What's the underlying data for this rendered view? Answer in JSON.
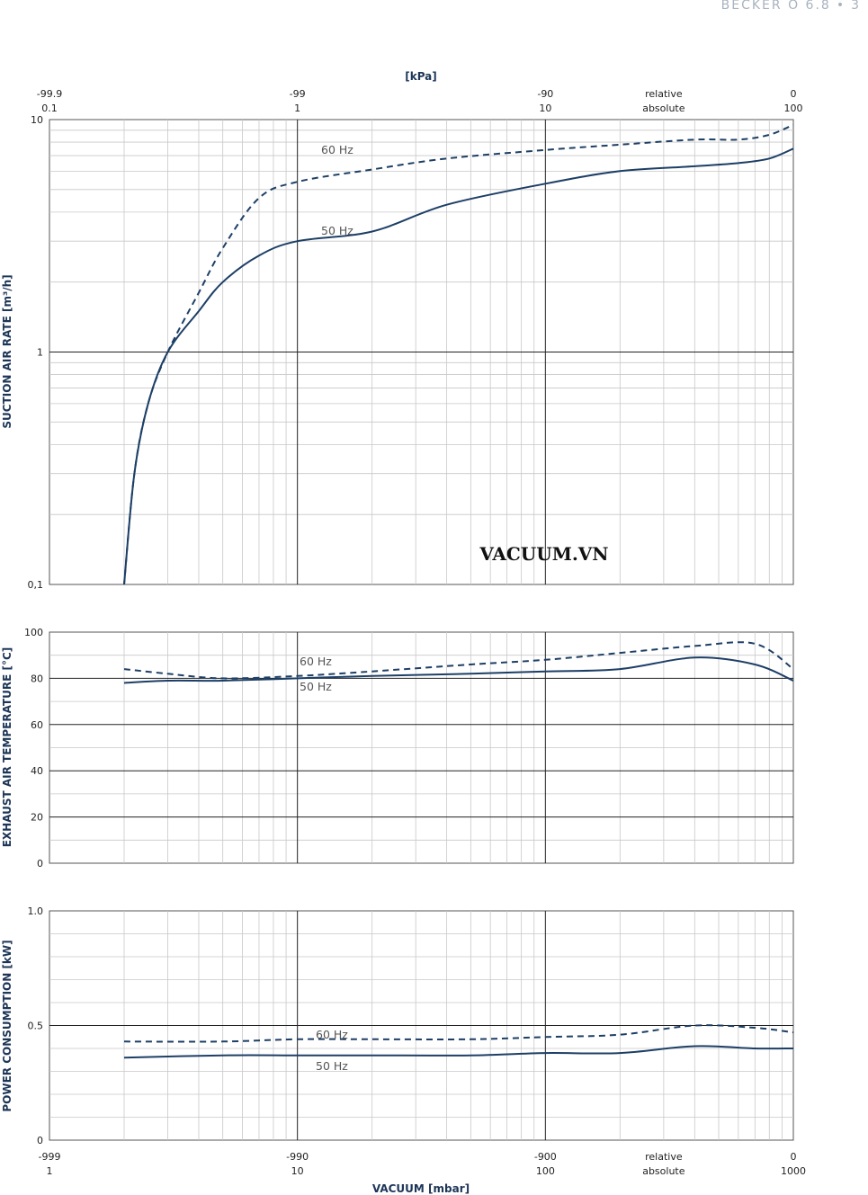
{
  "header": {
    "brand": "BECKER O 6.8",
    "page": "3"
  },
  "watermark": "VACUUM.VN",
  "colors": {
    "curve": "#1d3f66",
    "grid_major": "#222222",
    "grid_minor": "#c8c8c8",
    "axis_title": "#1d3557"
  },
  "chart_data": [
    {
      "type": "line",
      "id": "suction",
      "ylabel": "SUCTION AIR RATE  [m³/h]",
      "y_scale": "log",
      "ylim": [
        0.1,
        10
      ],
      "y_ticks": [
        "0,1",
        "1",
        "10"
      ],
      "x_scale": "log",
      "xlabel": "[kPa]",
      "x_ticks": [
        {
          "relative": "-99.9",
          "absolute": "0.1"
        },
        {
          "relative": "-99",
          "absolute": "1"
        },
        {
          "relative": "-90",
          "absolute": "10"
        },
        {
          "relative": "relative",
          "absolute": "absolute"
        },
        {
          "relative": "0",
          "absolute": "100"
        }
      ],
      "series": [
        {
          "name": "60 Hz",
          "style": "dashed",
          "x": [
            2,
            2.2,
            2.5,
            3,
            4,
            5,
            7,
            10,
            20,
            40,
            100,
            200,
            400,
            600,
            800,
            1000
          ],
          "y": [
            0.1,
            0.3,
            0.6,
            1.0,
            1.8,
            2.8,
            4.6,
            5.4,
            6.1,
            6.8,
            7.4,
            7.8,
            8.2,
            8.2,
            8.6,
            9.5
          ]
        },
        {
          "name": "50 Hz",
          "style": "solid",
          "x": [
            2,
            2.2,
            2.5,
            3,
            4,
            5,
            7,
            10,
            20,
            40,
            100,
            200,
            400,
            600,
            800,
            1000
          ],
          "y": [
            0.1,
            0.3,
            0.6,
            1.0,
            1.5,
            2.0,
            2.6,
            3.0,
            3.3,
            4.3,
            5.3,
            6.0,
            6.3,
            6.5,
            6.8,
            7.5
          ]
        }
      ]
    },
    {
      "type": "line",
      "id": "temperature",
      "ylabel": "EXHAUST AIR TEMPERATURE  [°C]",
      "y_scale": "linear",
      "ylim": [
        0,
        100
      ],
      "y_ticks": [
        "0",
        "20",
        "40",
        "60",
        "80",
        "100"
      ],
      "series": [
        {
          "name": "60 Hz",
          "style": "dashed",
          "x": [
            2,
            3,
            5,
            10,
            20,
            50,
            100,
            200,
            400,
            700,
            1000
          ],
          "y": [
            84,
            82,
            80,
            81,
            83,
            86,
            88,
            91,
            94,
            95,
            84
          ]
        },
        {
          "name": "50 Hz",
          "style": "solid",
          "x": [
            2,
            3,
            5,
            10,
            20,
            50,
            100,
            200,
            400,
            700,
            1000
          ],
          "y": [
            78,
            79,
            79,
            80,
            81,
            82,
            83,
            84,
            89,
            86,
            79
          ]
        }
      ]
    },
    {
      "type": "line",
      "id": "power",
      "ylabel": "POWER CONSUMPTION  [kW]",
      "y_scale": "linear",
      "ylim": [
        0,
        1.0
      ],
      "y_ticks": [
        "0",
        "0.5",
        "1.0"
      ],
      "x_scale": "log",
      "xlabel": "VACUUM  [mbar]",
      "x_ticks": [
        {
          "relative": "-999",
          "absolute": "1"
        },
        {
          "relative": "-990",
          "absolute": "10"
        },
        {
          "relative": "-900",
          "absolute": "100"
        },
        {
          "relative": "relative",
          "absolute": "absolute"
        },
        {
          "relative": "0",
          "absolute": "1000"
        }
      ],
      "series": [
        {
          "name": "60 Hz",
          "style": "dashed",
          "x": [
            2,
            5,
            10,
            20,
            50,
            100,
            200,
            400,
            700,
            1000
          ],
          "y": [
            0.43,
            0.43,
            0.44,
            0.44,
            0.44,
            0.45,
            0.46,
            0.5,
            0.49,
            0.47
          ]
        },
        {
          "name": "50 Hz",
          "style": "solid",
          "x": [
            2,
            5,
            10,
            20,
            50,
            100,
            200,
            400,
            700,
            1000
          ],
          "y": [
            0.36,
            0.37,
            0.37,
            0.37,
            0.37,
            0.38,
            0.38,
            0.41,
            0.4,
            0.4
          ]
        }
      ]
    }
  ]
}
